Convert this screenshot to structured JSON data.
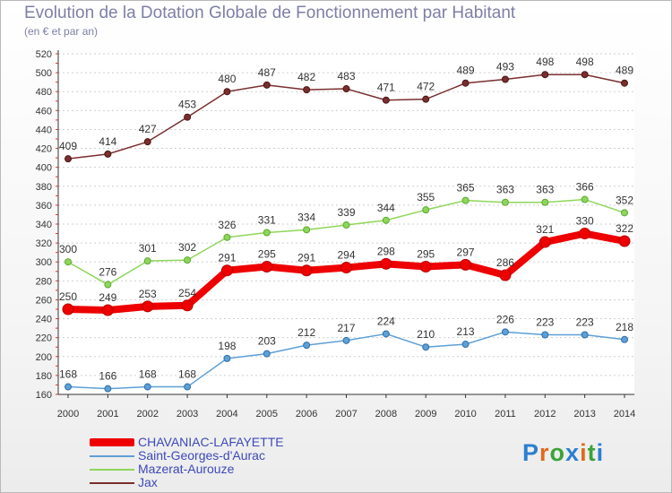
{
  "title": "Evolution de la Dotation Globale de Fonctionnement par Habitant",
  "subtitle": "(en € et par an)",
  "logo_text": "Proxiti",
  "chart_data": {
    "type": "line",
    "title": "Evolution de la Dotation Globale de Fonctionnement par Habitant",
    "subtitle": "(en € et par an)",
    "x": [
      2000,
      2001,
      2002,
      2003,
      2004,
      2005,
      2006,
      2007,
      2008,
      2009,
      2010,
      2011,
      2012,
      2013,
      2014
    ],
    "ylim": [
      160,
      520
    ],
    "ytick_step": 20,
    "grid": "horizontal dashed",
    "legend_position": "bottom-left",
    "series": [
      {
        "name": "CHAVANIAC-LAFAYETTE",
        "color": "#ee0000",
        "emphasis": true,
        "values": [
          250,
          249,
          253,
          254,
          291,
          295,
          291,
          294,
          298,
          295,
          297,
          286,
          321,
          330,
          322
        ]
      },
      {
        "name": "Saint-Georges-d'Aurac",
        "color": "#5d9fd6",
        "values": [
          168,
          166,
          168,
          168,
          198,
          203,
          212,
          217,
          224,
          210,
          213,
          226,
          223,
          223,
          218
        ]
      },
      {
        "name": "Mazerat-Aurouze",
        "color": "#8ed65a",
        "values": [
          300,
          276,
          301,
          302,
          326,
          331,
          334,
          339,
          344,
          355,
          365,
          363,
          363,
          366,
          352
        ]
      },
      {
        "name": "Jax",
        "color": "#7a2e2e",
        "values": [
          409,
          414,
          427,
          453,
          480,
          487,
          482,
          483,
          471,
          472,
          489,
          493,
          498,
          498,
          489
        ]
      }
    ]
  }
}
